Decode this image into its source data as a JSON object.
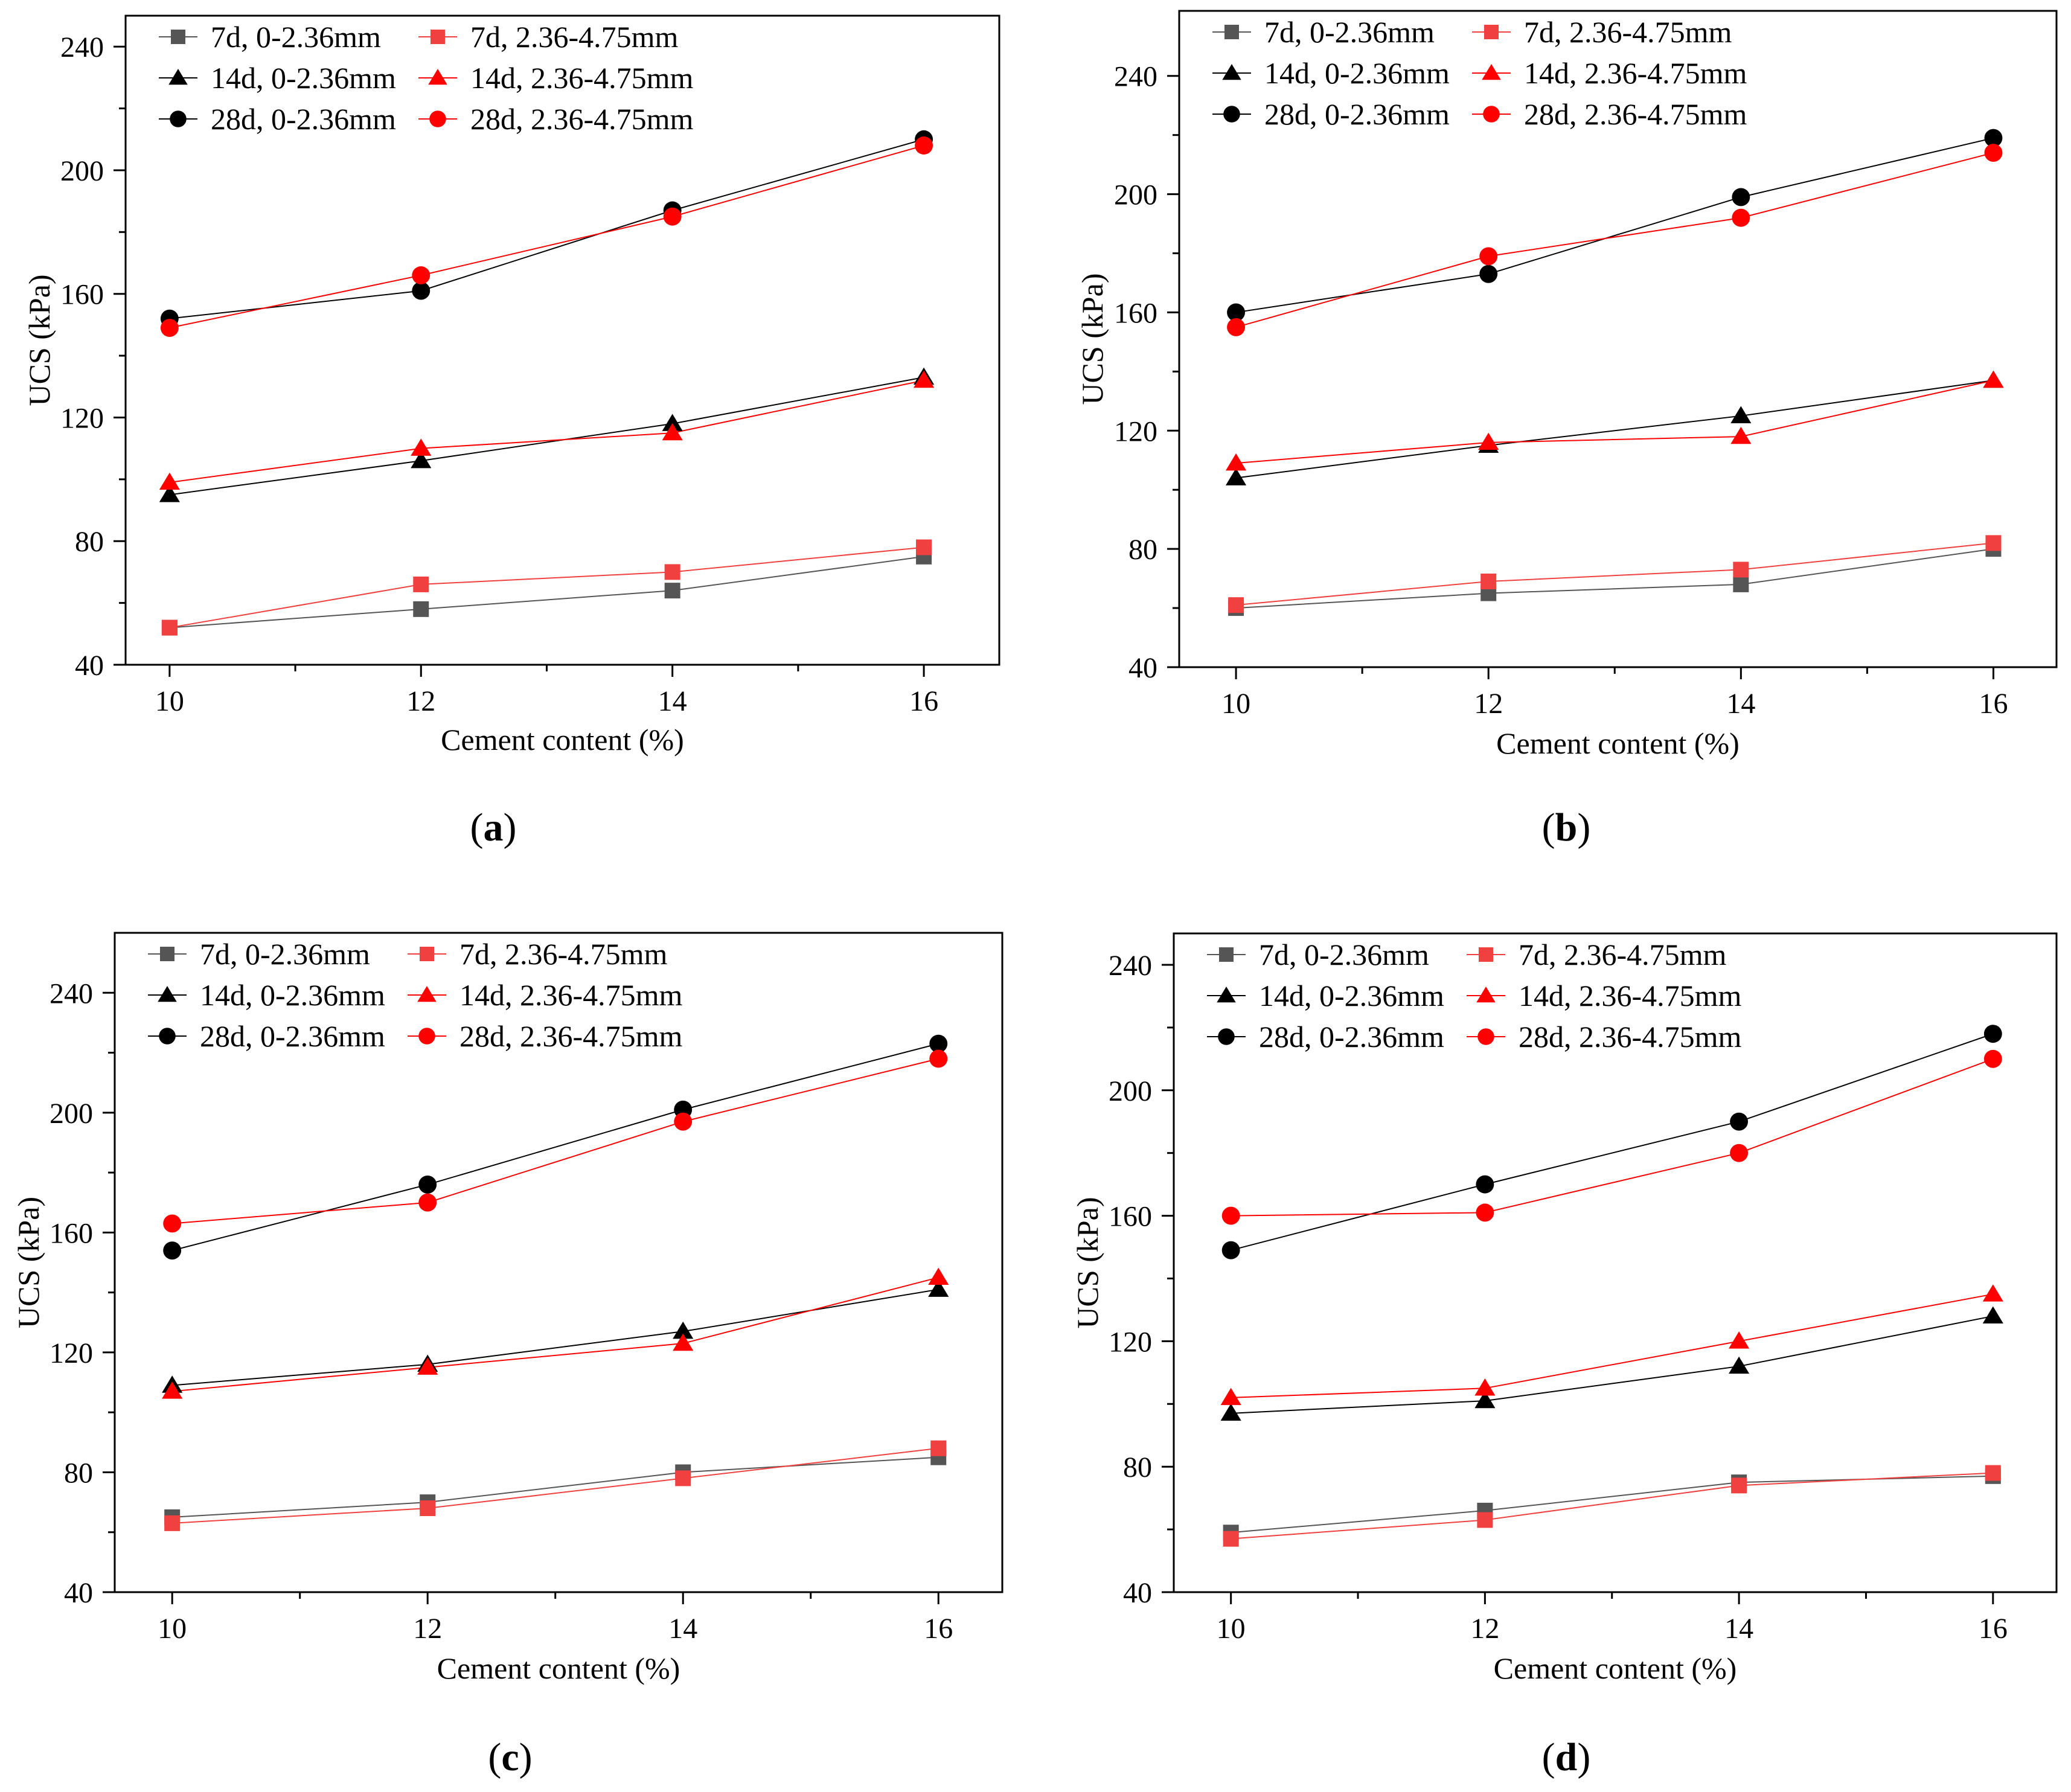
{
  "figure": {
    "colors": {
      "series_black": "#000000",
      "series_gray": "#555555",
      "series_red": "#ff0000",
      "series_lightred": "#f04040",
      "axis": "#000000"
    }
  },
  "chart_data": [
    {
      "panel": "a",
      "panel_label": {
        "open": "(",
        "letter": "a",
        "close": ")"
      },
      "type": "line",
      "xlabel": "Cement content (%)",
      "ylabel": "UCS (kPa)",
      "xlim": [
        9.65,
        16.6
      ],
      "ylim": [
        40,
        250
      ],
      "x_ticks": [
        10,
        12,
        14,
        16
      ],
      "y_ticks": [
        40,
        80,
        120,
        160,
        200,
        240
      ],
      "x": [
        10,
        12,
        14,
        16
      ],
      "series": [
        {
          "name": "7d, 0-2.36mm",
          "marker": "square",
          "color": "#555555",
          "values": [
            52,
            58,
            64,
            75
          ]
        },
        {
          "name": "7d, 2.36-4.75mm",
          "marker": "square",
          "color": "#f04040",
          "values": [
            52,
            66,
            70,
            78
          ]
        },
        {
          "name": "14d, 0-2.36mm",
          "marker": "triangle",
          "color": "#000000",
          "values": [
            95,
            106,
            118,
            133
          ]
        },
        {
          "name": "14d, 2.36-4.75mm",
          "marker": "triangle",
          "color": "#ff0000",
          "values": [
            99,
            110,
            115,
            132
          ]
        },
        {
          "name": "28d, 0-2.36mm",
          "marker": "circle",
          "color": "#000000",
          "values": [
            152,
            161,
            187,
            210
          ]
        },
        {
          "name": "28d, 2.36-4.75mm",
          "marker": "circle",
          "color": "#ff0000",
          "values": [
            149,
            166,
            185,
            208
          ]
        }
      ]
    },
    {
      "panel": "b",
      "panel_label": {
        "open": "(",
        "letter": "b",
        "close": ")"
      },
      "type": "line",
      "xlabel": "Cement content (%)",
      "ylabel": "UCS (kPa)",
      "xlim": [
        9.55,
        16.5
      ],
      "ylim": [
        40,
        262
      ],
      "x_ticks": [
        10,
        12,
        14,
        16
      ],
      "y_ticks": [
        40,
        80,
        120,
        160,
        200,
        240
      ],
      "x": [
        10,
        12,
        14,
        16
      ],
      "series": [
        {
          "name": "7d, 0-2.36mm",
          "marker": "square",
          "color": "#555555",
          "values": [
            60,
            65,
            68,
            80
          ]
        },
        {
          "name": "7d, 2.36-4.75mm",
          "marker": "square",
          "color": "#f04040",
          "values": [
            61,
            69,
            73,
            82
          ]
        },
        {
          "name": "14d, 0-2.36mm",
          "marker": "triangle",
          "color": "#000000",
          "values": [
            104,
            115,
            125,
            137
          ]
        },
        {
          "name": "14d, 2.36-4.75mm",
          "marker": "triangle",
          "color": "#ff0000",
          "values": [
            109,
            116,
            118,
            137
          ]
        },
        {
          "name": "28d, 0-2.36mm",
          "marker": "circle",
          "color": "#000000",
          "values": [
            160,
            173,
            199,
            219
          ]
        },
        {
          "name": "28d, 2.36-4.75mm",
          "marker": "circle",
          "color": "#ff0000",
          "values": [
            155,
            179,
            192,
            214
          ]
        }
      ]
    },
    {
      "panel": "c",
      "panel_label": {
        "open": "(",
        "letter": "c",
        "close": ")"
      },
      "type": "line",
      "xlabel": "Cement content (%)",
      "ylabel": "UCS (kPa)",
      "xlim": [
        9.55,
        16.5
      ],
      "ylim": [
        40,
        260
      ],
      "x_ticks": [
        10,
        12,
        14,
        16
      ],
      "y_ticks": [
        40,
        80,
        120,
        160,
        200,
        240
      ],
      "x": [
        10,
        12,
        14,
        16
      ],
      "series": [
        {
          "name": "7d, 0-2.36mm",
          "marker": "square",
          "color": "#555555",
          "values": [
            65,
            70,
            80,
            85
          ]
        },
        {
          "name": "7d, 2.36-4.75mm",
          "marker": "square",
          "color": "#f04040",
          "values": [
            63,
            68,
            78,
            88
          ]
        },
        {
          "name": "14d, 0-2.36mm",
          "marker": "triangle",
          "color": "#000000",
          "values": [
            109,
            116,
            127,
            141
          ]
        },
        {
          "name": "14d, 2.36-4.75mm",
          "marker": "triangle",
          "color": "#ff0000",
          "values": [
            107,
            115,
            123,
            145
          ]
        },
        {
          "name": "28d, 0-2.36mm",
          "marker": "circle",
          "color": "#000000",
          "values": [
            154,
            176,
            201,
            223
          ]
        },
        {
          "name": "28d, 2.36-4.75mm",
          "marker": "circle",
          "color": "#ff0000",
          "values": [
            163,
            170,
            197,
            218
          ]
        }
      ]
    },
    {
      "panel": "d",
      "panel_label": {
        "open": "(",
        "letter": "d",
        "close": ")"
      },
      "type": "line",
      "xlabel": "Cement content (%)",
      "ylabel": "UCS (kPa)",
      "xlim": [
        9.55,
        16.5
      ],
      "ylim": [
        40,
        250
      ],
      "x_ticks": [
        10,
        12,
        14,
        16
      ],
      "y_ticks": [
        40,
        80,
        120,
        160,
        200,
        240
      ],
      "x": [
        10,
        12,
        14,
        16
      ],
      "series": [
        {
          "name": "7d, 0-2.36mm",
          "marker": "square",
          "color": "#555555",
          "values": [
            59,
            66,
            75,
            77
          ]
        },
        {
          "name": "7d, 2.36-4.75mm",
          "marker": "square",
          "color": "#f04040",
          "values": [
            57,
            63,
            74,
            78
          ]
        },
        {
          "name": "14d, 0-2.36mm",
          "marker": "triangle",
          "color": "#000000",
          "values": [
            97,
            101,
            112,
            128
          ]
        },
        {
          "name": "14d, 2.36-4.75mm",
          "marker": "triangle",
          "color": "#ff0000",
          "values": [
            102,
            105,
            120,
            135
          ]
        },
        {
          "name": "28d, 0-2.36mm",
          "marker": "circle",
          "color": "#000000",
          "values": [
            149,
            170,
            190,
            218
          ]
        },
        {
          "name": "28d, 2.36-4.75mm",
          "marker": "circle",
          "color": "#ff0000",
          "values": [
            160,
            161,
            180,
            210
          ]
        }
      ]
    }
  ]
}
